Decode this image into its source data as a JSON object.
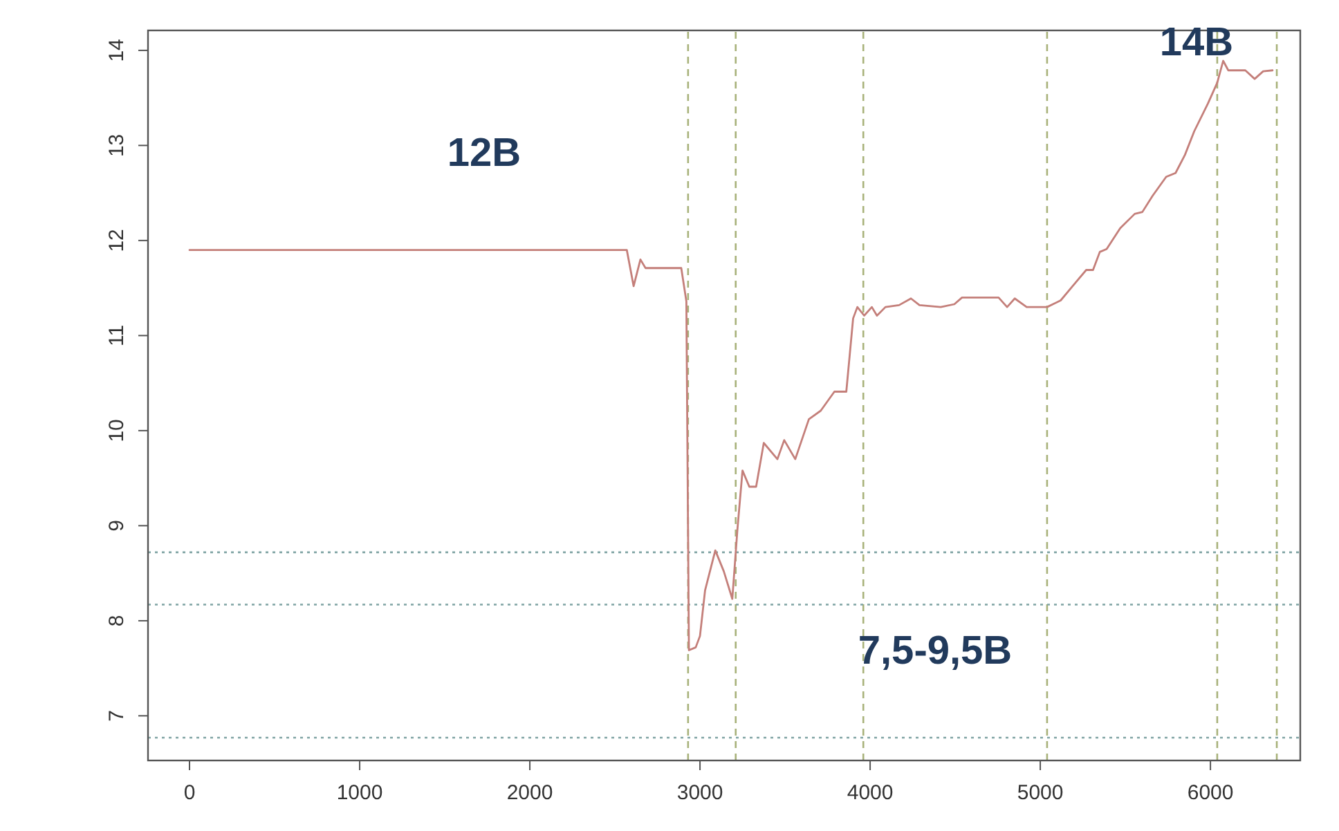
{
  "chart_data": {
    "type": "line",
    "x": [
      0,
      2570,
      2610,
      2650,
      2680,
      2890,
      2920,
      2935,
      2975,
      3000,
      3030,
      3090,
      3140,
      3190,
      3220,
      3250,
      3290,
      3330,
      3375,
      3455,
      3495,
      3560,
      3640,
      3710,
      3790,
      3860,
      3900,
      3925,
      3965,
      4010,
      4040,
      4090,
      4170,
      4240,
      4290,
      4415,
      4495,
      4540,
      4755,
      4805,
      4850,
      4920,
      5040,
      5120,
      5190,
      5270,
      5310,
      5350,
      5390,
      5470,
      5555,
      5600,
      5660,
      5740,
      5795,
      5850,
      5905,
      5985,
      6040,
      6075,
      6105,
      6205,
      6260,
      6310,
      6365
    ],
    "series": [
      {
        "color": "#c47f7a",
        "values": [
          11.9,
          11.9,
          11.52,
          11.8,
          11.71,
          11.71,
          11.36,
          7.69,
          7.72,
          7.84,
          8.32,
          8.74,
          8.52,
          8.23,
          8.96,
          9.58,
          9.41,
          9.41,
          9.87,
          9.7,
          9.9,
          9.7,
          10.12,
          10.21,
          10.41,
          10.41,
          11.18,
          11.3,
          11.21,
          11.3,
          11.21,
          11.3,
          11.32,
          11.39,
          11.32,
          11.3,
          11.33,
          11.4,
          11.4,
          11.3,
          11.39,
          11.3,
          11.3,
          11.37,
          11.52,
          11.69,
          11.69,
          11.88,
          11.91,
          12.13,
          12.28,
          12.3,
          12.47,
          12.67,
          12.71,
          12.9,
          13.15,
          13.44,
          13.66,
          13.89,
          13.79,
          13.79,
          13.7,
          13.78,
          13.79
        ]
      }
    ],
    "xlim": [
      -244,
      6528
    ],
    "ylim": [
      6.53,
      14.21
    ],
    "xticks": [
      0,
      1000,
      2000,
      3000,
      4000,
      5000,
      6000
    ],
    "yticks": [
      7,
      8,
      9,
      10,
      11,
      12,
      13,
      14
    ],
    "grid": false,
    "marker": "none",
    "line_style": "solid",
    "ref_lines": [
      {
        "axis": "x",
        "value": 2930,
        "color": "#a8b27a",
        "line_style": "dashed"
      },
      {
        "axis": "x",
        "value": 3210,
        "color": "#a8b27a",
        "line_style": "dashed"
      },
      {
        "axis": "x",
        "value": 3960,
        "color": "#a8b27a",
        "line_style": "dashed"
      },
      {
        "axis": "x",
        "value": 5040,
        "color": "#a8b27a",
        "line_style": "dashed"
      },
      {
        "axis": "x",
        "value": 6040,
        "color": "#a8b27a",
        "line_style": "dashed"
      },
      {
        "axis": "x",
        "value": 6390,
        "color": "#a8b27a",
        "line_style": "dashed"
      },
      {
        "axis": "y",
        "value": 8.72,
        "color": "#7fa3a3",
        "line_style": "dotted"
      },
      {
        "axis": "y",
        "value": 8.17,
        "color": "#7fa3a3",
        "line_style": "dotted"
      },
      {
        "axis": "y",
        "value": 6.77,
        "color": "#7fa3a3",
        "line_style": "dotted"
      }
    ],
    "annotations": [
      "12B",
      "14B",
      "7,5-9,5B"
    ]
  }
}
